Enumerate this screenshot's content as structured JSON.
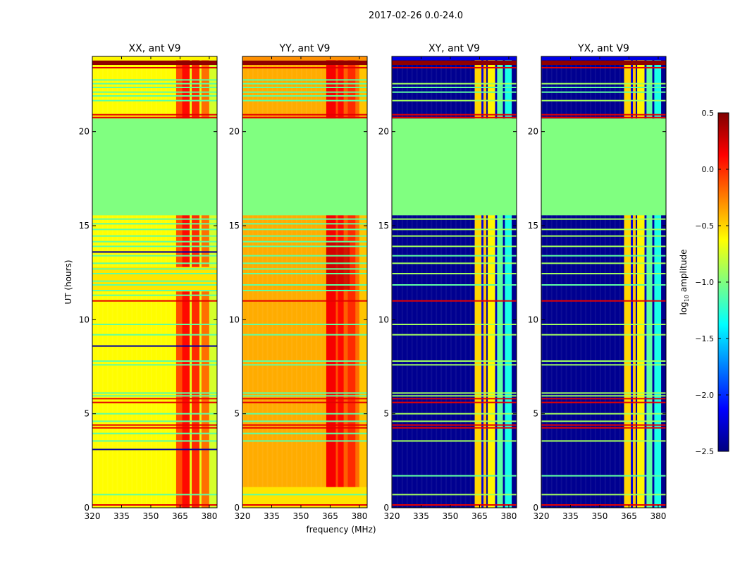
{
  "chart_data": {
    "type": "heatmap",
    "title": "2017-02-26 0.0-24.0",
    "xlabel": "frequency (MHz)",
    "ylabel": "UT (hours)",
    "xlim": [
      320,
      384
    ],
    "ylim": [
      0,
      24
    ],
    "xticks": [
      "320",
      "335",
      "350",
      "365",
      "380"
    ],
    "xtick_values": [
      320,
      335,
      350,
      365,
      380
    ],
    "yticks": [
      "0",
      "5",
      "10",
      "15",
      "20"
    ],
    "ytick_values": [
      0,
      5,
      10,
      15,
      20
    ],
    "colormap": "jet",
    "colorbar": {
      "label_prefix": "log",
      "label_sub": "10",
      "label_suffix": " amplitude",
      "range": [
        -2.5,
        0.5
      ],
      "ticks": [
        "0.5",
        "0.0",
        "−0.5",
        "−1.0",
        "−1.5",
        "−2.0",
        "−2.5"
      ],
      "tick_values": [
        0.5,
        0.0,
        -0.5,
        -1.0,
        -1.5,
        -2.0,
        -2.5
      ]
    },
    "flagged_value": -1.0,
    "flagged_ranges_hours": [
      [
        15.55,
        20.7
      ]
    ],
    "panels": [
      {
        "title": "XX, ant V9",
        "base": -0.62,
        "regions": [
          [
            23.8,
            24,
            -0.6
          ],
          [
            23.55,
            23.78,
            0.45
          ],
          [
            11.5,
            12.8,
            -0.55
          ]
        ],
        "columns": [
          [
            363,
            366,
            -0.1
          ],
          [
            366,
            370,
            0.1
          ],
          [
            370,
            371,
            -0.7
          ],
          [
            371,
            375,
            0.0
          ],
          [
            375,
            376,
            -0.7
          ],
          [
            376,
            380,
            -0.2
          ],
          [
            380,
            384,
            -0.75
          ]
        ],
        "hot_patches": [
          [
            11.6,
            12.6,
            363,
            375,
            0.35
          ]
        ],
        "lines": [
          [
            23.4,
            0.2
          ],
          [
            22.75,
            -1.1
          ],
          [
            22.55,
            -1.1
          ],
          [
            22.35,
            -1.1
          ],
          [
            22.1,
            -1.1
          ],
          [
            21.9,
            -1.1
          ],
          [
            21.65,
            -1.1
          ],
          [
            20.9,
            0.2
          ],
          [
            20.75,
            0.2
          ],
          [
            15.35,
            -1.1
          ],
          [
            15.1,
            -1.1
          ],
          [
            14.8,
            -1.1
          ],
          [
            14.45,
            -1.1
          ],
          [
            14.15,
            -1.1
          ],
          [
            13.9,
            -1.1
          ],
          [
            13.6,
            -2.4
          ],
          [
            13.4,
            -1.1
          ],
          [
            13.0,
            -1.1
          ],
          [
            12.7,
            -1.1
          ],
          [
            12.45,
            -1.1
          ],
          [
            12.05,
            -1.1
          ],
          [
            11.85,
            -1.1
          ],
          [
            11.55,
            -1.1
          ],
          [
            11.3,
            -1.1
          ],
          [
            11.0,
            0.2
          ],
          [
            9.75,
            -1.1
          ],
          [
            9.2,
            -1.1
          ],
          [
            8.6,
            -2.4
          ],
          [
            7.8,
            -1.1
          ],
          [
            7.6,
            -1.1
          ],
          [
            6.1,
            -1.1
          ],
          [
            5.95,
            -1.1
          ],
          [
            5.8,
            0.2
          ],
          [
            5.6,
            0.2
          ],
          [
            5.0,
            -1.1
          ],
          [
            4.6,
            -1.1
          ],
          [
            4.4,
            0.2
          ],
          [
            4.25,
            0.2
          ],
          [
            3.95,
            -1.1
          ],
          [
            3.55,
            -1.1
          ],
          [
            3.1,
            -2.4
          ],
          [
            0.7,
            -1.1
          ],
          [
            0.15,
            0.2
          ]
        ]
      },
      {
        "title": "YY, ant V9",
        "base": -0.38,
        "regions": [
          [
            23.8,
            24,
            -0.3
          ],
          [
            23.55,
            23.78,
            0.45
          ],
          [
            0,
            1.1,
            -0.55
          ]
        ],
        "columns": [
          [
            363,
            368,
            0.15
          ],
          [
            368,
            369,
            -0.1
          ],
          [
            369,
            372,
            0.1
          ],
          [
            372,
            374,
            -0.15
          ],
          [
            374,
            378,
            0.0
          ],
          [
            378,
            380,
            -0.2
          ],
          [
            380,
            384,
            -0.45
          ]
        ],
        "hot_patches": [
          [
            11.6,
            14.2,
            363,
            375,
            0.3
          ]
        ],
        "lines": [
          [
            23.4,
            0.2
          ],
          [
            22.75,
            -1.1
          ],
          [
            22.55,
            -1.1
          ],
          [
            22.35,
            -1.1
          ],
          [
            22.1,
            -1.1
          ],
          [
            21.9,
            -1.1
          ],
          [
            21.65,
            -1.1
          ],
          [
            20.9,
            0.2
          ],
          [
            20.75,
            0.2
          ],
          [
            15.35,
            -1.1
          ],
          [
            15.1,
            -1.1
          ],
          [
            14.8,
            -1.1
          ],
          [
            14.45,
            -1.1
          ],
          [
            14.15,
            -1.1
          ],
          [
            13.9,
            -1.1
          ],
          [
            13.4,
            -1.1
          ],
          [
            13.0,
            -1.1
          ],
          [
            12.7,
            -1.1
          ],
          [
            12.45,
            -1.1
          ],
          [
            11.85,
            -1.1
          ],
          [
            11.55,
            -1.1
          ],
          [
            11.0,
            0.2
          ],
          [
            9.75,
            -1.1
          ],
          [
            9.2,
            -1.1
          ],
          [
            7.8,
            -1.1
          ],
          [
            7.6,
            -1.1
          ],
          [
            6.1,
            -1.1
          ],
          [
            5.95,
            -1.1
          ],
          [
            5.8,
            0.2
          ],
          [
            5.6,
            0.2
          ],
          [
            5.0,
            -1.1
          ],
          [
            4.6,
            -1.1
          ],
          [
            4.4,
            0.2
          ],
          [
            4.25,
            0.2
          ],
          [
            3.95,
            -1.1
          ],
          [
            3.55,
            -1.1
          ],
          [
            0.7,
            -1.1
          ],
          [
            0.15,
            0.2
          ]
        ]
      },
      {
        "title": "XY, ant V9",
        "base": -2.45,
        "regions": [
          [
            23.8,
            24,
            -2.2
          ],
          [
            23.55,
            23.78,
            0.45
          ]
        ],
        "columns": [
          [
            362.5,
            366,
            -0.5
          ],
          [
            366,
            367,
            -2.2
          ],
          [
            367,
            368.5,
            -0.45
          ],
          [
            368.5,
            369.2,
            -2.4
          ],
          [
            369.2,
            373,
            -0.6
          ],
          [
            373,
            374,
            -2.3
          ],
          [
            374,
            377,
            -1.1
          ],
          [
            377,
            378,
            -2.4
          ],
          [
            378,
            381.5,
            -1.3
          ]
        ],
        "hot_patches": [],
        "lines": [
          [
            23.4,
            0.2
          ],
          [
            22.55,
            -0.9
          ],
          [
            22.35,
            -1.1
          ],
          [
            22.1,
            -1.1
          ],
          [
            21.65,
            -0.9
          ],
          [
            20.9,
            0.2
          ],
          [
            20.75,
            0.2
          ],
          [
            15.35,
            -0.9
          ],
          [
            14.8,
            -0.9
          ],
          [
            14.45,
            -0.9
          ],
          [
            13.9,
            -0.9
          ],
          [
            13.4,
            -1.1
          ],
          [
            13.0,
            -0.9
          ],
          [
            12.45,
            -0.9
          ],
          [
            11.85,
            -1.1
          ],
          [
            11.0,
            0.2
          ],
          [
            9.75,
            -0.9
          ],
          [
            9.2,
            -0.9
          ],
          [
            7.8,
            -0.9
          ],
          [
            7.6,
            -0.9
          ],
          [
            6.1,
            -0.9
          ],
          [
            5.95,
            -0.9
          ],
          [
            5.8,
            0.2
          ],
          [
            5.6,
            0.2
          ],
          [
            5.0,
            -0.9
          ],
          [
            4.6,
            -0.9
          ],
          [
            4.4,
            0.2
          ],
          [
            4.25,
            0.2
          ],
          [
            3.55,
            -0.9
          ],
          [
            1.7,
            -1.1
          ],
          [
            0.7,
            -0.9
          ],
          [
            0.15,
            0.2
          ]
        ]
      },
      {
        "title": "YX, ant V9",
        "base": -2.45,
        "regions": [
          [
            23.8,
            24,
            -2.2
          ],
          [
            23.55,
            23.78,
            0.45
          ]
        ],
        "columns": [
          [
            362.5,
            366,
            -0.5
          ],
          [
            366,
            367,
            -2.2
          ],
          [
            367,
            368.5,
            -0.45
          ],
          [
            368.5,
            369.2,
            -2.4
          ],
          [
            369.2,
            373,
            -0.6
          ],
          [
            373,
            374,
            -2.3
          ],
          [
            374,
            377,
            -1.1
          ],
          [
            377,
            378,
            -2.4
          ],
          [
            378,
            381.5,
            -1.3
          ]
        ],
        "hot_patches": [],
        "lines": [
          [
            23.4,
            0.2
          ],
          [
            22.55,
            -0.9
          ],
          [
            22.35,
            -1.1
          ],
          [
            22.1,
            -1.1
          ],
          [
            21.65,
            -0.9
          ],
          [
            20.9,
            0.2
          ],
          [
            20.75,
            0.2
          ],
          [
            15.35,
            -0.9
          ],
          [
            14.8,
            -0.9
          ],
          [
            14.45,
            -0.9
          ],
          [
            13.9,
            -0.9
          ],
          [
            13.4,
            -1.1
          ],
          [
            13.0,
            -0.9
          ],
          [
            12.45,
            -0.9
          ],
          [
            11.85,
            -1.1
          ],
          [
            11.0,
            0.2
          ],
          [
            9.75,
            -0.9
          ],
          [
            9.2,
            -0.9
          ],
          [
            7.8,
            -0.9
          ],
          [
            7.6,
            -0.9
          ],
          [
            6.1,
            -0.9
          ],
          [
            5.95,
            -0.9
          ],
          [
            5.8,
            0.2
          ],
          [
            5.6,
            0.2
          ],
          [
            5.0,
            -0.9
          ],
          [
            4.6,
            -0.9
          ],
          [
            4.4,
            0.2
          ],
          [
            4.25,
            0.2
          ],
          [
            3.55,
            -0.9
          ],
          [
            1.7,
            -1.1
          ],
          [
            0.7,
            -0.9
          ],
          [
            0.15,
            0.2
          ]
        ]
      }
    ]
  }
}
